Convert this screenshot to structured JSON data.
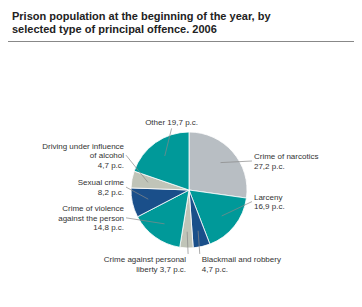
{
  "chart_data": {
    "type": "pie",
    "title": "Prison population at the beginning of the year, by\nselected type of principal offence. 2006",
    "categories": [
      "Crime of narcotics\n27,2 p.c.",
      "Larceny\n16,9 p.c.",
      "Blackmail and robbery\n4,7 p.c.",
      "Crime against personal\nliberty 3,7 p.c.",
      "Crime of violence\nagainst the person\n14,8 p.c.",
      "Sexual crime\n8,2 p.c.",
      "Driving under influence\nof alcohol\n4,7 p.c.",
      "Other 19,7 p.c."
    ],
    "values": [
      27.2,
      16.9,
      4.7,
      3.7,
      14.8,
      8.2,
      4.7,
      19.7
    ],
    "colors": [
      "#b8bec3",
      "#009999",
      "#1a4f8a",
      "#c0c4b8",
      "#009999",
      "#1a4f8a",
      "#c0c4b8",
      "#009999"
    ]
  }
}
